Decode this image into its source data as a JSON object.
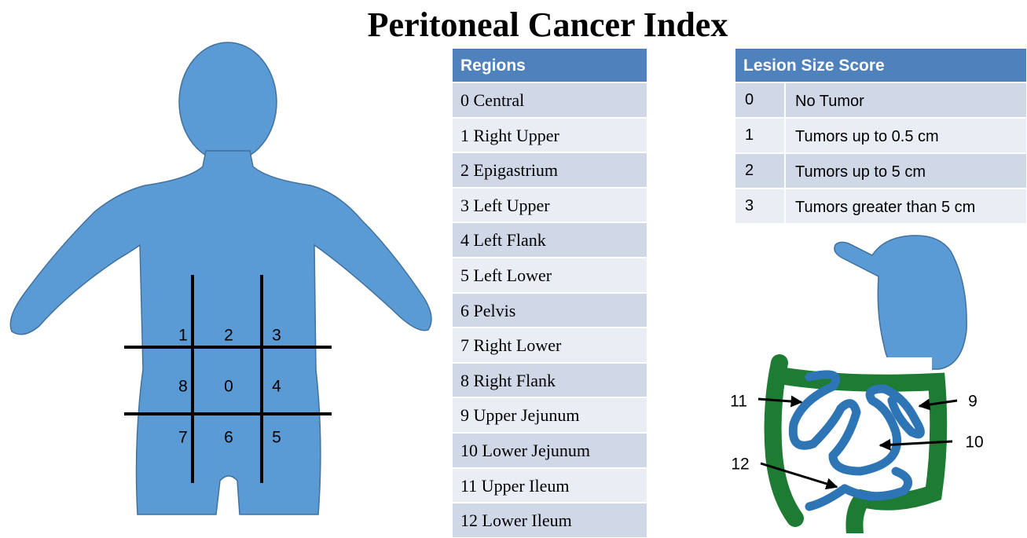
{
  "title": "Peritoneal Cancer Index",
  "regions_table": {
    "header": "Regions",
    "rows": [
      "0 Central",
      "1 Right Upper",
      "2 Epigastrium",
      "3 Left Upper",
      "4 Left Flank",
      "5 Left Lower",
      "6 Pelvis",
      "7 Right Lower",
      "8 Right Flank",
      "9 Upper Jejunum",
      "10 Lower Jejunum",
      "11 Upper Ileum",
      "12 Lower Ileum"
    ]
  },
  "lesion_table": {
    "header": "Lesion Size Score",
    "rows": [
      [
        "0",
        "No Tumor"
      ],
      [
        "1",
        "Tumors up to 0.5 cm"
      ],
      [
        "2",
        "Tumors up to 5 cm"
      ],
      [
        "3",
        "Tumors greater than 5 cm"
      ]
    ]
  },
  "body_diagram": {
    "labels": [
      "1",
      "2",
      "3",
      "8",
      "0",
      "4",
      "7",
      "6",
      "5"
    ]
  },
  "intestine_diagram": {
    "labels": [
      "11",
      "9",
      "10",
      "12"
    ]
  }
}
